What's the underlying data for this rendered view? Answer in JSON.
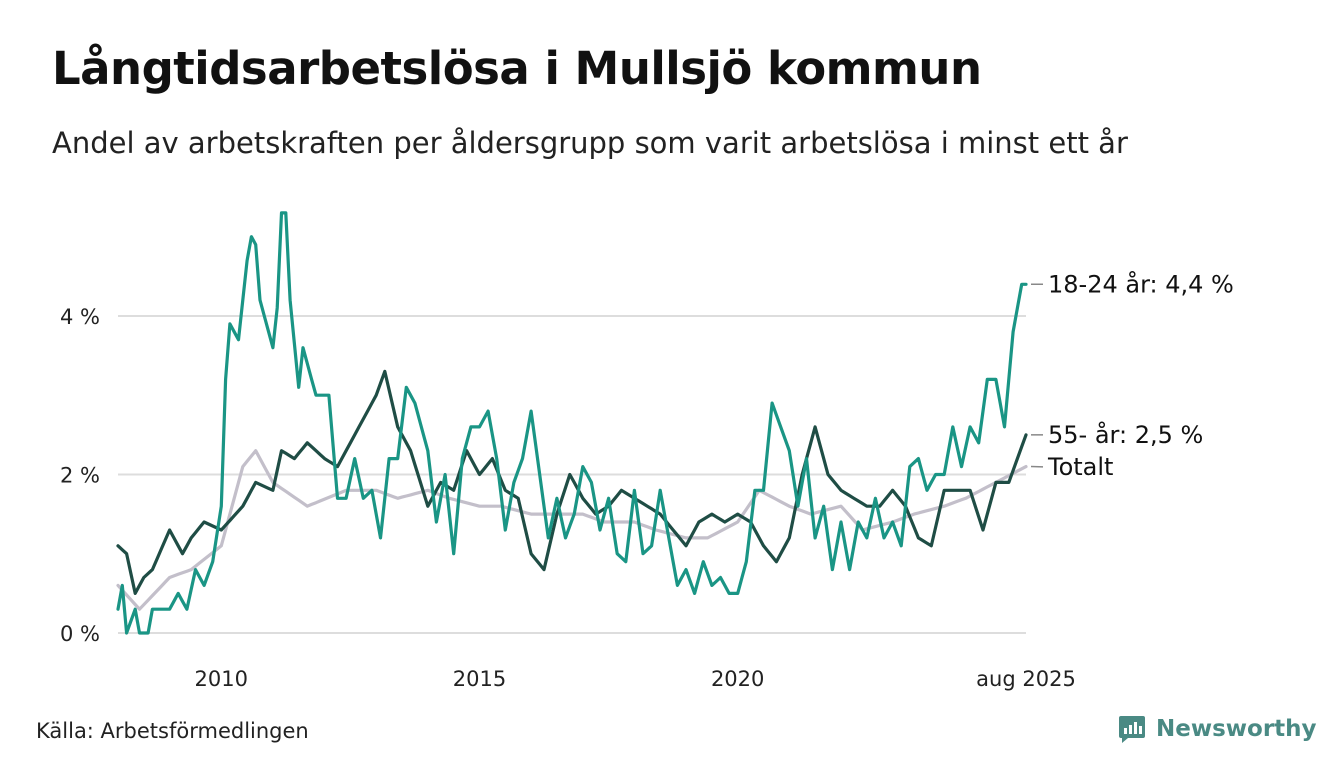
{
  "title": "Långtidsarbetslösa i Mullsjö kommun",
  "subtitle": "Andel av arbetskraften per åldersgrupp som varit arbetslösa i minst ett år",
  "source": "Källa: Arbetsförmedlingen",
  "brand": "Newsworthy",
  "colors": {
    "youth": "#1a9585",
    "senior": "#1f4d45",
    "total": "#c3bfca",
    "grid": "#dddddd",
    "brand": "#4a8a84"
  },
  "chart_data": {
    "type": "line",
    "x_start": "2008-01",
    "x_end": "2025-08",
    "x_step": "month",
    "xticks": [
      {
        "x": "2010-01",
        "label": "2010"
      },
      {
        "x": "2015-01",
        "label": "2015"
      },
      {
        "x": "2020-01",
        "label": "2020"
      },
      {
        "x": "2025-08",
        "label": "aug 2025"
      }
    ],
    "yticks": [
      {
        "y": 0,
        "label": "0 %"
      },
      {
        "y": 2,
        "label": "2 %"
      },
      {
        "y": 4,
        "label": "4 %"
      }
    ],
    "ylim": [
      0,
      5.4
    ],
    "grid": "horizontal",
    "series": [
      {
        "name": "Totalt",
        "label": "Totalt",
        "color": "#c3bfca",
        "anchors": [
          [
            "2008-01",
            0.6
          ],
          [
            "2008-06",
            0.3
          ],
          [
            "2009-01",
            0.7
          ],
          [
            "2009-06",
            0.8
          ],
          [
            "2010-01",
            1.1
          ],
          [
            "2010-06",
            2.1
          ],
          [
            "2010-09",
            2.3
          ],
          [
            "2011-01",
            1.9
          ],
          [
            "2011-09",
            1.6
          ],
          [
            "2012-06",
            1.8
          ],
          [
            "2013-01",
            1.8
          ],
          [
            "2013-06",
            1.7
          ],
          [
            "2014-01",
            1.8
          ],
          [
            "2014-06",
            1.7
          ],
          [
            "2015-01",
            1.6
          ],
          [
            "2015-06",
            1.6
          ],
          [
            "2016-01",
            1.5
          ],
          [
            "2016-06",
            1.5
          ],
          [
            "2017-01",
            1.5
          ],
          [
            "2017-06",
            1.4
          ],
          [
            "2018-01",
            1.4
          ],
          [
            "2018-06",
            1.3
          ],
          [
            "2019-01",
            1.2
          ],
          [
            "2019-06",
            1.2
          ],
          [
            "2020-01",
            1.4
          ],
          [
            "2020-06",
            1.8
          ],
          [
            "2021-01",
            1.6
          ],
          [
            "2021-06",
            1.5
          ],
          [
            "2022-01",
            1.6
          ],
          [
            "2022-06",
            1.3
          ],
          [
            "2023-01",
            1.4
          ],
          [
            "2023-06",
            1.5
          ],
          [
            "2024-01",
            1.6
          ],
          [
            "2024-06",
            1.7
          ],
          [
            "2025-01",
            1.9
          ],
          [
            "2025-08",
            2.1
          ]
        ]
      },
      {
        "name": "55- år",
        "label": "55- år: 2,5 %",
        "color": "#1f4d45",
        "anchors": [
          [
            "2008-01",
            1.1
          ],
          [
            "2008-03",
            1.0
          ],
          [
            "2008-05",
            0.5
          ],
          [
            "2008-07",
            0.7
          ],
          [
            "2008-09",
            0.8
          ],
          [
            "2009-01",
            1.3
          ],
          [
            "2009-04",
            1.0
          ],
          [
            "2009-06",
            1.2
          ],
          [
            "2009-09",
            1.4
          ],
          [
            "2010-01",
            1.3
          ],
          [
            "2010-06",
            1.6
          ],
          [
            "2010-09",
            1.9
          ],
          [
            "2011-01",
            1.8
          ],
          [
            "2011-03",
            2.3
          ],
          [
            "2011-06",
            2.2
          ],
          [
            "2011-09",
            2.4
          ],
          [
            "2012-01",
            2.2
          ],
          [
            "2012-04",
            2.1
          ],
          [
            "2012-07",
            2.4
          ],
          [
            "2012-10",
            2.7
          ],
          [
            "2013-01",
            3.0
          ],
          [
            "2013-03",
            3.3
          ],
          [
            "2013-06",
            2.6
          ],
          [
            "2013-09",
            2.3
          ],
          [
            "2014-01",
            1.6
          ],
          [
            "2014-04",
            1.9
          ],
          [
            "2014-07",
            1.8
          ],
          [
            "2014-10",
            2.3
          ],
          [
            "2015-01",
            2.0
          ],
          [
            "2015-04",
            2.2
          ],
          [
            "2015-07",
            1.8
          ],
          [
            "2015-10",
            1.7
          ],
          [
            "2016-01",
            1.0
          ],
          [
            "2016-04",
            0.8
          ],
          [
            "2016-07",
            1.5
          ],
          [
            "2016-10",
            2.0
          ],
          [
            "2017-01",
            1.7
          ],
          [
            "2017-04",
            1.5
          ],
          [
            "2017-07",
            1.6
          ],
          [
            "2017-10",
            1.8
          ],
          [
            "2018-01",
            1.7
          ],
          [
            "2018-04",
            1.6
          ],
          [
            "2018-07",
            1.5
          ],
          [
            "2018-10",
            1.3
          ],
          [
            "2019-01",
            1.1
          ],
          [
            "2019-04",
            1.4
          ],
          [
            "2019-07",
            1.5
          ],
          [
            "2019-10",
            1.4
          ],
          [
            "2020-01",
            1.5
          ],
          [
            "2020-04",
            1.4
          ],
          [
            "2020-07",
            1.1
          ],
          [
            "2020-10",
            0.9
          ],
          [
            "2021-01",
            1.2
          ],
          [
            "2021-04",
            2.0
          ],
          [
            "2021-07",
            2.6
          ],
          [
            "2021-10",
            2.0
          ],
          [
            "2022-01",
            1.8
          ],
          [
            "2022-04",
            1.7
          ],
          [
            "2022-07",
            1.6
          ],
          [
            "2022-10",
            1.6
          ],
          [
            "2023-01",
            1.8
          ],
          [
            "2023-04",
            1.6
          ],
          [
            "2023-07",
            1.2
          ],
          [
            "2023-10",
            1.1
          ],
          [
            "2024-01",
            1.8
          ],
          [
            "2024-04",
            1.8
          ],
          [
            "2024-07",
            1.8
          ],
          [
            "2024-10",
            1.3
          ],
          [
            "2025-01",
            1.9
          ],
          [
            "2025-04",
            1.9
          ],
          [
            "2025-08",
            2.5
          ]
        ]
      },
      {
        "name": "18-24 år",
        "label": "18-24 år: 4,4 %",
        "color": "#1a9585",
        "anchors": [
          [
            "2008-01",
            0.3
          ],
          [
            "2008-02",
            0.6
          ],
          [
            "2008-03",
            0.0
          ],
          [
            "2008-05",
            0.3
          ],
          [
            "2008-06",
            0.0
          ],
          [
            "2008-08",
            0.0
          ],
          [
            "2008-09",
            0.3
          ],
          [
            "2009-01",
            0.3
          ],
          [
            "2009-03",
            0.5
          ],
          [
            "2009-05",
            0.3
          ],
          [
            "2009-07",
            0.8
          ],
          [
            "2009-09",
            0.6
          ],
          [
            "2009-11",
            0.9
          ],
          [
            "2010-01",
            1.6
          ],
          [
            "2010-02",
            3.2
          ],
          [
            "2010-03",
            3.9
          ],
          [
            "2010-05",
            3.7
          ],
          [
            "2010-07",
            4.7
          ],
          [
            "2010-08",
            5.0
          ],
          [
            "2010-09",
            4.9
          ],
          [
            "2010-10",
            4.2
          ],
          [
            "2010-12",
            3.8
          ],
          [
            "2011-01",
            3.6
          ],
          [
            "2011-02",
            4.1
          ],
          [
            "2011-03",
            5.3
          ],
          [
            "2011-04",
            5.3
          ],
          [
            "2011-05",
            4.2
          ],
          [
            "2011-07",
            3.1
          ],
          [
            "2011-08",
            3.6
          ],
          [
            "2011-09",
            3.4
          ],
          [
            "2011-11",
            3.0
          ],
          [
            "2012-02",
            3.0
          ],
          [
            "2012-04",
            1.7
          ],
          [
            "2012-06",
            1.7
          ],
          [
            "2012-08",
            2.2
          ],
          [
            "2012-10",
            1.7
          ],
          [
            "2012-12",
            1.8
          ],
          [
            "2013-02",
            1.2
          ],
          [
            "2013-04",
            2.2
          ],
          [
            "2013-06",
            2.2
          ],
          [
            "2013-08",
            3.1
          ],
          [
            "2013-10",
            2.9
          ],
          [
            "2014-01",
            2.3
          ],
          [
            "2014-03",
            1.4
          ],
          [
            "2014-05",
            2.0
          ],
          [
            "2014-07",
            1.0
          ],
          [
            "2014-09",
            2.2
          ],
          [
            "2014-11",
            2.6
          ],
          [
            "2015-01",
            2.6
          ],
          [
            "2015-03",
            2.8
          ],
          [
            "2015-05",
            2.2
          ],
          [
            "2015-07",
            1.3
          ],
          [
            "2015-09",
            1.9
          ],
          [
            "2015-11",
            2.2
          ],
          [
            "2016-01",
            2.8
          ],
          [
            "2016-03",
            2.0
          ],
          [
            "2016-05",
            1.2
          ],
          [
            "2016-07",
            1.7
          ],
          [
            "2016-09",
            1.2
          ],
          [
            "2016-11",
            1.5
          ],
          [
            "2017-01",
            2.1
          ],
          [
            "2017-03",
            1.9
          ],
          [
            "2017-05",
            1.3
          ],
          [
            "2017-07",
            1.7
          ],
          [
            "2017-09",
            1.0
          ],
          [
            "2017-11",
            0.9
          ],
          [
            "2018-01",
            1.8
          ],
          [
            "2018-03",
            1.0
          ],
          [
            "2018-05",
            1.1
          ],
          [
            "2018-07",
            1.8
          ],
          [
            "2018-09",
            1.2
          ],
          [
            "2018-11",
            0.6
          ],
          [
            "2019-01",
            0.8
          ],
          [
            "2019-03",
            0.5
          ],
          [
            "2019-05",
            0.9
          ],
          [
            "2019-07",
            0.6
          ],
          [
            "2019-09",
            0.7
          ],
          [
            "2019-11",
            0.5
          ],
          [
            "2020-01",
            0.5
          ],
          [
            "2020-03",
            0.9
          ],
          [
            "2020-05",
            1.8
          ],
          [
            "2020-07",
            1.8
          ],
          [
            "2020-09",
            2.9
          ],
          [
            "2020-11",
            2.6
          ],
          [
            "2021-01",
            2.3
          ],
          [
            "2021-03",
            1.6
          ],
          [
            "2021-05",
            2.2
          ],
          [
            "2021-07",
            1.2
          ],
          [
            "2021-09",
            1.6
          ],
          [
            "2021-11",
            0.8
          ],
          [
            "2022-01",
            1.4
          ],
          [
            "2022-03",
            0.8
          ],
          [
            "2022-05",
            1.4
          ],
          [
            "2022-07",
            1.2
          ],
          [
            "2022-09",
            1.7
          ],
          [
            "2022-11",
            1.2
          ],
          [
            "2023-01",
            1.4
          ],
          [
            "2023-03",
            1.1
          ],
          [
            "2023-05",
            2.1
          ],
          [
            "2023-07",
            2.2
          ],
          [
            "2023-09",
            1.8
          ],
          [
            "2023-11",
            2.0
          ],
          [
            "2024-01",
            2.0
          ],
          [
            "2024-03",
            2.6
          ],
          [
            "2024-05",
            2.1
          ],
          [
            "2024-07",
            2.6
          ],
          [
            "2024-09",
            2.4
          ],
          [
            "2024-11",
            3.2
          ],
          [
            "2025-01",
            3.2
          ],
          [
            "2025-03",
            2.6
          ],
          [
            "2025-05",
            3.8
          ],
          [
            "2025-07",
            4.4
          ],
          [
            "2025-08",
            4.4
          ]
        ]
      }
    ]
  }
}
